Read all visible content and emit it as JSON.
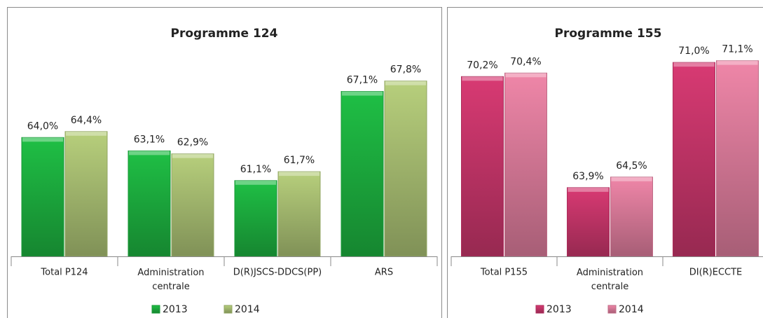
{
  "chart_data": [
    {
      "type": "bar",
      "title": "Programme 124",
      "categories": [
        "Total P124",
        "Administration centrale",
        "D(R)JSCS-DDCS(PP)",
        "ARS"
      ],
      "series": [
        {
          "name": "2013",
          "color": "#1fbf45",
          "values": [
            64.0,
            63.1,
            61.1,
            67.1
          ],
          "value_labels": [
            "64,0%",
            "63,1%",
            "61,1%",
            "67,1%"
          ]
        },
        {
          "name": "2014",
          "color": "#b7cf7c",
          "values": [
            64.4,
            62.9,
            61.7,
            67.8
          ],
          "value_labels": [
            "64,4%",
            "62,9%",
            "61,7%",
            "67,8%"
          ]
        }
      ],
      "ylim": [
        56,
        70
      ],
      "legend": "bottom"
    },
    {
      "type": "bar",
      "title": "Programme 155",
      "categories": [
        "Total P155",
        "Administration centrale",
        "DI(R)ECCTE"
      ],
      "series": [
        {
          "name": "2013",
          "color": "#d83a73",
          "values": [
            70.2,
            63.9,
            71.0
          ],
          "value_labels": [
            "70,2%",
            "63,9%",
            "71,0%"
          ]
        },
        {
          "name": "2014",
          "color": "#ef86a8",
          "values": [
            70.4,
            64.5,
            71.1
          ],
          "value_labels": [
            "70,4%",
            "64,5%",
            "71,1%"
          ]
        }
      ],
      "ylim": [
        60,
        72
      ],
      "legend": "bottom"
    }
  ]
}
